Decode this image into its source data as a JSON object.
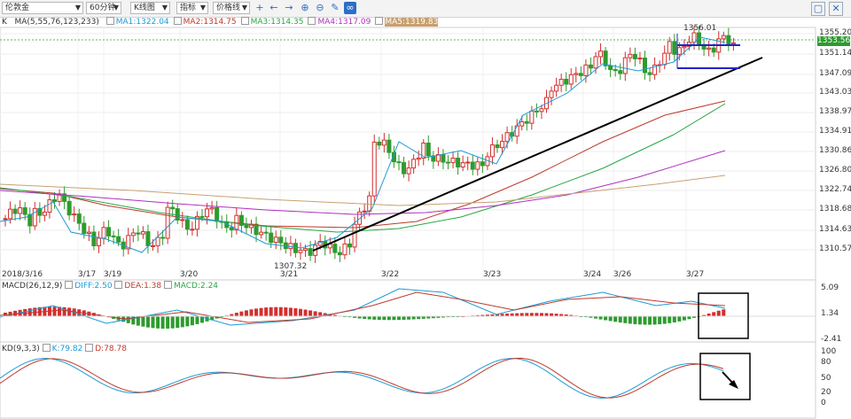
{
  "toolbar": {
    "symbol": "伦敦金",
    "period": "60分钟",
    "chart_type": "K线图",
    "indicator": "指标",
    "line_type": "价格线",
    "icons": [
      "crosshair-icon",
      "arrow-left-icon",
      "arrow-right-icon",
      "zoom-in-icon",
      "zoom-out-icon",
      "pencil-icon",
      "link-icon"
    ],
    "right_icons": [
      "window-restore-icon",
      "close-icon"
    ]
  },
  "main_legend": {
    "k": "K",
    "ma": "MA(5,55,76,123,233)",
    "items": [
      {
        "label": "MA1:1322.04",
        "color": "#1a9bd7"
      },
      {
        "label": "MA2:1314.75",
        "color": "#c0392b"
      },
      {
        "label": "MA3:1314.35",
        "color": "#27a744"
      },
      {
        "label": "MA4:1317.09",
        "color": "#b030c0"
      },
      {
        "label": "MA5:1319.83",
        "color": "#c8a070"
      }
    ]
  },
  "price_axis": [
    "1355.20",
    "1351.14",
    "1347.09",
    "1343.03",
    "1338.97",
    "1334.91",
    "1330.86",
    "1326.80",
    "1322.74",
    "1318.68",
    "1314.63",
    "1310.57"
  ],
  "current_price": "1353.56",
  "high_label": "1356.01",
  "low_label": "1307.32",
  "date_labels": [
    "2018/3/16",
    "3/17",
    "3/19",
    "3/20",
    "3/21",
    "3/22",
    "3/23",
    "3/24",
    "3/26",
    "3/27"
  ],
  "macd": {
    "title": "MACD(26,12,9)",
    "diff": "DIFF:2.50",
    "dea": "DEA:1.38",
    "macd": "MACD:2.24",
    "axis": [
      "5.09",
      "1.34",
      "-2.41"
    ]
  },
  "kd": {
    "title": "KD(9,3,3)",
    "k": "K:79.82",
    "d": "D:78.78",
    "axis": [
      "100",
      "80",
      "50",
      "20",
      "0"
    ]
  },
  "colors": {
    "up": "#d32f2f",
    "down": "#2e9b2e",
    "ma1": "#1a9bd7",
    "ma2": "#c0392b",
    "ma3": "#27a744",
    "ma4": "#b030c0",
    "ma5": "#c8a070",
    "price_tag": "#2e9b2e"
  }
}
